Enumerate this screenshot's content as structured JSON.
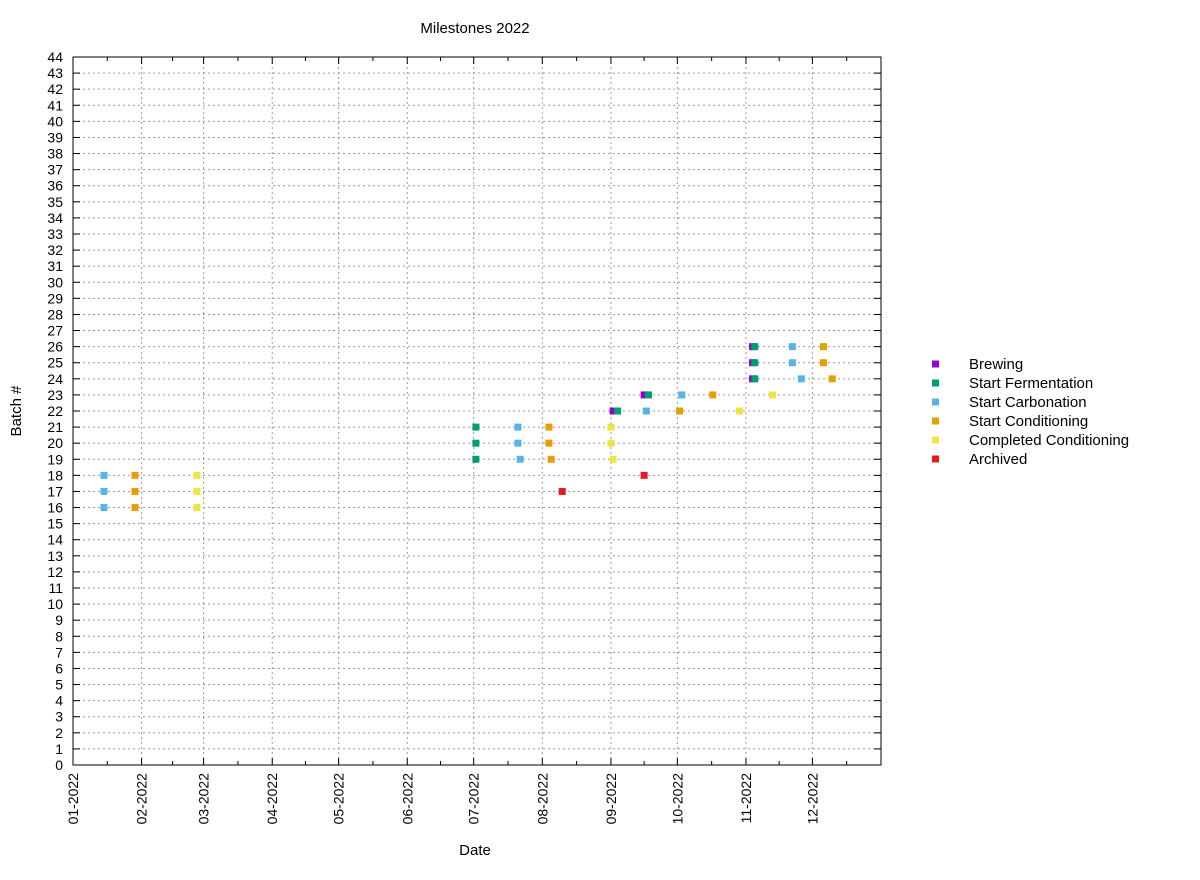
{
  "chart_data": {
    "type": "scatter",
    "title": "Milestones 2022",
    "xlabel": "Date",
    "ylabel": "Batch #",
    "xlim": [
      "2022-01-01",
      "2023-01-01"
    ],
    "ylim": [
      0,
      44
    ],
    "x_ticks": [
      "01-2022",
      "02-2022",
      "03-2022",
      "04-2022",
      "05-2022",
      "06-2022",
      "07-2022",
      "08-2022",
      "09-2022",
      "10-2022",
      "11-2022",
      "12-2022"
    ],
    "grid": true,
    "legend_position": "right",
    "series": [
      {
        "name": "Brewing",
        "color": "#9400d3",
        "points": [
          {
            "x": "2022-09-02",
            "y": 22
          },
          {
            "x": "2022-09-16",
            "y": 23
          },
          {
            "x": "2022-11-04",
            "y": 24
          },
          {
            "x": "2022-11-04",
            "y": 25
          },
          {
            "x": "2022-11-04",
            "y": 26
          }
        ]
      },
      {
        "name": "Start Fermentation",
        "color": "#009e73",
        "points": [
          {
            "x": "2022-07-02",
            "y": 19
          },
          {
            "x": "2022-07-02",
            "y": 20
          },
          {
            "x": "2022-07-02",
            "y": 21
          },
          {
            "x": "2022-09-04",
            "y": 22
          },
          {
            "x": "2022-09-18",
            "y": 23
          },
          {
            "x": "2022-11-05",
            "y": 24
          },
          {
            "x": "2022-11-05",
            "y": 25
          },
          {
            "x": "2022-11-05",
            "y": 26
          }
        ]
      },
      {
        "name": "Start Carbonation",
        "color": "#56b4e9",
        "points": [
          {
            "x": "2022-01-15",
            "y": 16
          },
          {
            "x": "2022-01-15",
            "y": 17
          },
          {
            "x": "2022-01-15",
            "y": 18
          },
          {
            "x": "2022-07-22",
            "y": 19
          },
          {
            "x": "2022-07-21",
            "y": 20
          },
          {
            "x": "2022-07-21",
            "y": 21
          },
          {
            "x": "2022-09-17",
            "y": 22
          },
          {
            "x": "2022-10-03",
            "y": 23
          },
          {
            "x": "2022-11-26",
            "y": 24
          },
          {
            "x": "2022-11-22",
            "y": 25
          },
          {
            "x": "2022-11-22",
            "y": 26
          }
        ]
      },
      {
        "name": "Start Conditioning",
        "color": "#e69f00",
        "points": [
          {
            "x": "2022-01-29",
            "y": 16
          },
          {
            "x": "2022-01-29",
            "y": 17
          },
          {
            "x": "2022-01-29",
            "y": 18
          },
          {
            "x": "2022-08-05",
            "y": 19
          },
          {
            "x": "2022-08-04",
            "y": 20
          },
          {
            "x": "2022-08-04",
            "y": 21
          },
          {
            "x": "2022-10-02",
            "y": 22
          },
          {
            "x": "2022-10-17",
            "y": 23
          },
          {
            "x": "2022-12-10",
            "y": 24
          },
          {
            "x": "2022-12-06",
            "y": 25
          },
          {
            "x": "2022-12-06",
            "y": 26
          }
        ]
      },
      {
        "name": "Completed Conditioning",
        "color": "#f0e442",
        "points": [
          {
            "x": "2022-02-26",
            "y": 16
          },
          {
            "x": "2022-02-26",
            "y": 17
          },
          {
            "x": "2022-02-26",
            "y": 18
          },
          {
            "x": "2022-09-02",
            "y": 19
          },
          {
            "x": "2022-09-01",
            "y": 20
          },
          {
            "x": "2022-09-01",
            "y": 21
          },
          {
            "x": "2022-10-29",
            "y": 22
          },
          {
            "x": "2022-11-13",
            "y": 23
          }
        ]
      },
      {
        "name": "Archived",
        "color": "#e41a1c",
        "points": [
          {
            "x": "2022-08-10",
            "y": 17
          },
          {
            "x": "2022-09-16",
            "y": 18
          }
        ]
      }
    ]
  }
}
